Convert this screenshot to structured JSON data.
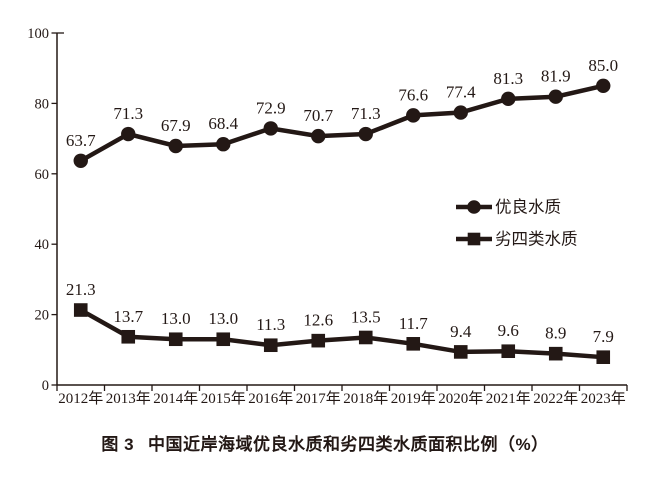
{
  "figure": {
    "caption_label": "图 3",
    "caption_text": "中国近岸海域优良水质和劣四类水质面积比例（%）"
  },
  "chart_data": {
    "type": "line",
    "title": "图 3　中国近岸海域优良水质和劣四类水质面积比例（%）",
    "categories": [
      "2012年",
      "2013年",
      "2014年",
      "2015年",
      "2016年",
      "2017年",
      "2018年",
      "2019年",
      "2020年",
      "2021年",
      "2022年",
      "2023年"
    ],
    "series": [
      {
        "name": "优良水质",
        "marker": "circle",
        "values": [
          63.7,
          71.3,
          67.9,
          68.4,
          72.9,
          70.7,
          71.3,
          76.6,
          77.4,
          81.3,
          81.9,
          85.0
        ]
      },
      {
        "name": "劣四类水质",
        "marker": "square",
        "values": [
          21.3,
          13.7,
          13.0,
          13.0,
          11.3,
          12.6,
          13.5,
          11.7,
          9.4,
          9.6,
          8.9,
          7.9
        ]
      }
    ],
    "xlabel": "",
    "ylabel": "",
    "ylim": [
      0,
      100
    ],
    "yticks": [
      0,
      20,
      40,
      60,
      80,
      100
    ],
    "grid": false,
    "legend_position": "middle-right",
    "legend_labels": [
      "优良水质",
      "劣四类水质"
    ],
    "colors": {
      "line": "#231815",
      "text": "#231815",
      "background": "#ffffff"
    }
  }
}
